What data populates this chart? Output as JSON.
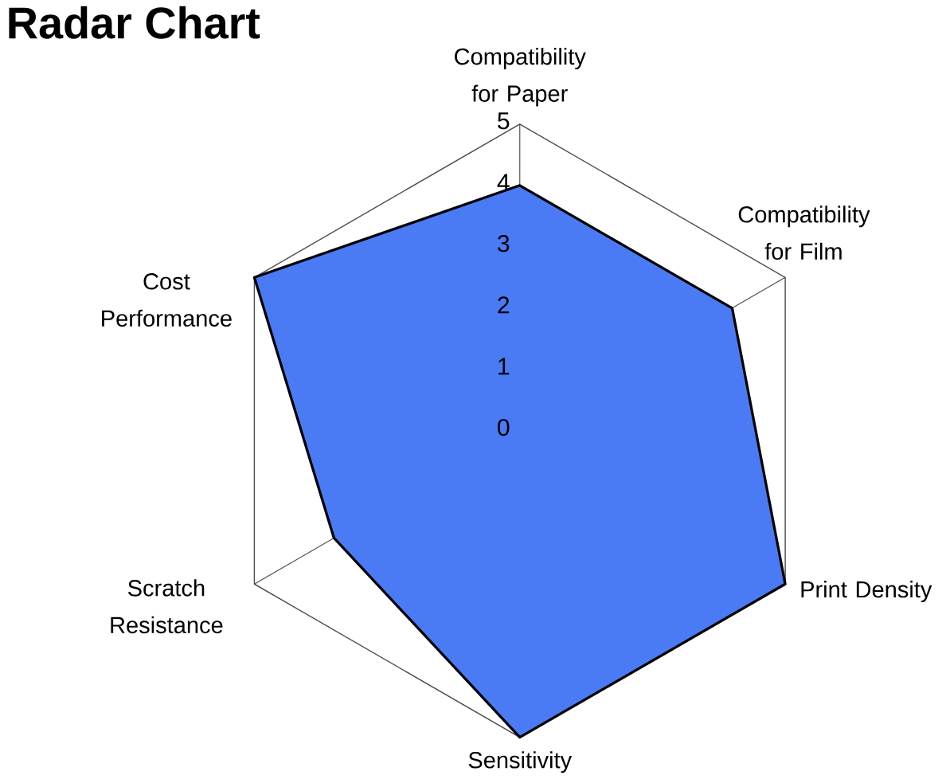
{
  "chart_data": {
    "type": "radar",
    "title": "Radar Chart",
    "categories": [
      "Compatibility for Paper",
      "Compatibility for Film",
      "Print Density",
      "Sensitivity",
      "Scratch Resistance",
      "Cost Performance"
    ],
    "series": [
      {
        "color": "#4a7bf4",
        "values": [
          4,
          4,
          5,
          5,
          3.5,
          5
        ]
      }
    ],
    "ylim": [
      0,
      5
    ],
    "yticks": [
      0,
      1,
      2,
      3,
      4,
      5
    ]
  }
}
